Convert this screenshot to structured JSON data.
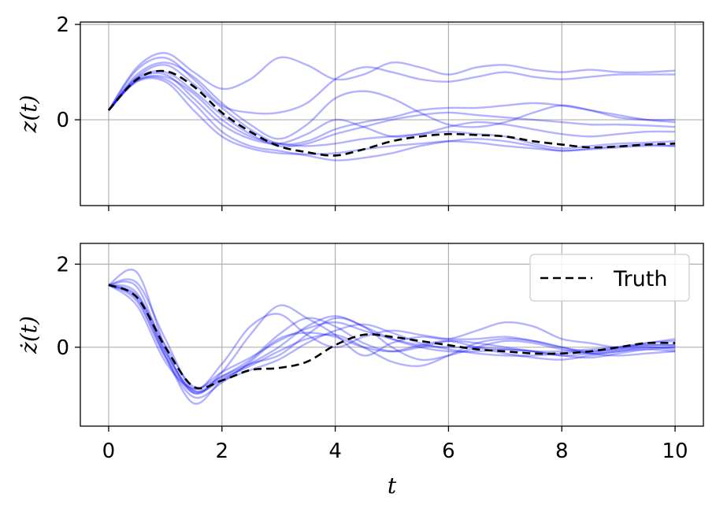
{
  "chart_data": [
    {
      "type": "line",
      "ylabel": "z(t)",
      "xlabel": "",
      "xlim": [
        -0.5,
        10.5
      ],
      "ylim": [
        -1.8,
        2.05
      ],
      "xticks": [
        0,
        2,
        4,
        6,
        8,
        10
      ],
      "yticks": [
        0,
        2
      ],
      "grid": true,
      "x": [
        0,
        0.5,
        1,
        1.5,
        2,
        2.5,
        3,
        3.5,
        4,
        4.5,
        5,
        5.5,
        6,
        6.5,
        7,
        7.5,
        8,
        8.5,
        9,
        9.5,
        10
      ],
      "series": [
        {
          "name": "Truth",
          "style": "dashed",
          "color": "#000000",
          "values": [
            0.2,
            0.85,
            1.02,
            0.7,
            0.15,
            -0.25,
            -0.55,
            -0.68,
            -0.75,
            -0.62,
            -0.45,
            -0.35,
            -0.3,
            -0.32,
            -0.35,
            -0.45,
            -0.52,
            -0.58,
            -0.56,
            -0.52,
            -0.5
          ]
        },
        {
          "style": "sample",
          "values": [
            0.2,
            1.1,
            1.4,
            1.0,
            0.65,
            0.85,
            1.3,
            1.15,
            0.85,
            0.95,
            1.2,
            1.1,
            0.95,
            1.1,
            1.15,
            1.05,
            1.0,
            1.05,
            1.0,
            1.0,
            1.03
          ]
        },
        {
          "style": "sample",
          "values": [
            0.2,
            1.05,
            1.3,
            0.85,
            0.3,
            0.15,
            0.15,
            0.35,
            0.85,
            1.1,
            1.0,
            0.85,
            0.8,
            0.9,
            1.0,
            0.9,
            0.85,
            0.9,
            0.95,
            0.95,
            0.95
          ]
        },
        {
          "style": "sample",
          "values": [
            0.2,
            0.95,
            1.2,
            0.9,
            0.35,
            -0.1,
            -0.4,
            -0.1,
            0.45,
            0.6,
            0.45,
            0.15,
            -0.1,
            -0.15,
            -0.05,
            0.15,
            0.3,
            0.2,
            0.05,
            0.0,
            0.0
          ]
        },
        {
          "style": "sample",
          "values": [
            0.2,
            0.9,
            1.15,
            0.75,
            0.25,
            -0.2,
            -0.5,
            -0.45,
            -0.2,
            -0.05,
            0.05,
            0.2,
            0.25,
            0.25,
            0.3,
            0.35,
            0.3,
            0.2,
            0.1,
            0.0,
            -0.05
          ]
        },
        {
          "style": "sample",
          "values": [
            0.2,
            0.88,
            1.0,
            0.6,
            0.1,
            -0.3,
            -0.55,
            -0.5,
            -0.3,
            -0.15,
            0.0,
            0.1,
            0.15,
            0.1,
            0.05,
            0.0,
            -0.05,
            -0.1,
            -0.1,
            -0.12,
            -0.15
          ]
        },
        {
          "style": "sample",
          "values": [
            0.2,
            0.85,
            0.95,
            0.45,
            -0.1,
            -0.4,
            -0.5,
            -0.3,
            0.0,
            -0.15,
            -0.35,
            -0.3,
            -0.15,
            -0.05,
            -0.1,
            -0.2,
            -0.3,
            -0.35,
            -0.3,
            -0.25,
            -0.25
          ]
        },
        {
          "style": "sample",
          "values": [
            0.2,
            0.82,
            0.9,
            0.55,
            0.0,
            -0.35,
            -0.5,
            -0.55,
            -0.5,
            -0.4,
            -0.35,
            -0.3,
            -0.25,
            -0.3,
            -0.35,
            -0.5,
            -0.6,
            -0.55,
            -0.5,
            -0.48,
            -0.45
          ]
        },
        {
          "style": "sample",
          "values": [
            0.2,
            0.82,
            0.85,
            0.35,
            -0.25,
            -0.55,
            -0.65,
            -0.75,
            -0.85,
            -0.8,
            -0.7,
            -0.55,
            -0.45,
            -0.4,
            -0.45,
            -0.55,
            -0.65,
            -0.6,
            -0.55,
            -0.52,
            -0.55
          ]
        },
        {
          "style": "sample",
          "values": [
            0.2,
            0.8,
            0.8,
            0.2,
            -0.35,
            -0.6,
            -0.7,
            -0.72,
            -0.7,
            -0.62,
            -0.55,
            -0.5,
            -0.45,
            -0.48,
            -0.55,
            -0.6,
            -0.65,
            -0.62,
            -0.58,
            -0.55,
            -0.55
          ]
        }
      ]
    },
    {
      "type": "line",
      "ylabel": "ż(t)",
      "xlabel": "t",
      "xlim": [
        -0.5,
        10.5
      ],
      "ylim": [
        -1.9,
        2.5
      ],
      "xticks": [
        0,
        2,
        4,
        6,
        8,
        10
      ],
      "yticks": [
        0,
        2
      ],
      "grid": true,
      "legend": {
        "position": "top-right",
        "entries": [
          "Truth"
        ]
      },
      "x": [
        0,
        0.5,
        1,
        1.5,
        2,
        2.5,
        3,
        3.5,
        4,
        4.5,
        5,
        5.5,
        6,
        6.5,
        7,
        7.5,
        8,
        8.5,
        9,
        9.5,
        10
      ],
      "series": [
        {
          "name": "Truth",
          "style": "dashed",
          "color": "#000000",
          "values": [
            1.5,
            1.2,
            0.0,
            -0.95,
            -0.8,
            -0.55,
            -0.5,
            -0.35,
            0.05,
            0.3,
            0.25,
            0.15,
            0.05,
            -0.05,
            -0.1,
            -0.15,
            -0.15,
            -0.1,
            0.0,
            0.1,
            0.1
          ]
        },
        {
          "style": "sample",
          "values": [
            1.5,
            1.8,
            0.0,
            -1.1,
            -0.6,
            0.3,
            1.0,
            0.7,
            0.3,
            -0.2,
            0.1,
            0.25,
            0.2,
            0.4,
            0.6,
            0.5,
            0.2,
            0.1,
            0.0,
            0.1,
            0.2
          ]
        },
        {
          "style": "sample",
          "values": [
            1.5,
            1.55,
            0.2,
            -1.0,
            -0.4,
            0.5,
            0.8,
            0.3,
            0.0,
            0.25,
            0.4,
            0.3,
            0.2,
            0.2,
            0.25,
            0.15,
            0.0,
            -0.1,
            0.0,
            0.1,
            0.15
          ]
        },
        {
          "style": "sample",
          "values": [
            1.5,
            1.45,
            -0.1,
            -1.05,
            -0.7,
            -0.3,
            0.3,
            0.7,
            0.5,
            0.1,
            -0.1,
            0.0,
            0.15,
            0.1,
            0.0,
            -0.1,
            -0.2,
            -0.15,
            -0.05,
            0.05,
            0.05
          ]
        },
        {
          "style": "sample",
          "values": [
            1.5,
            1.3,
            -0.2,
            -1.35,
            -0.8,
            -0.4,
            0.0,
            0.5,
            0.75,
            0.5,
            0.2,
            0.0,
            -0.1,
            -0.1,
            -0.05,
            -0.1,
            -0.2,
            -0.25,
            -0.15,
            -0.05,
            0.0
          ]
        },
        {
          "style": "sample",
          "values": [
            1.5,
            1.25,
            0.05,
            -0.95,
            -0.7,
            -0.4,
            -0.2,
            0.3,
            0.7,
            0.5,
            0.0,
            -0.3,
            -0.2,
            0.0,
            0.15,
            0.1,
            -0.05,
            -0.15,
            -0.1,
            0.0,
            -0.05
          ]
        },
        {
          "style": "sample",
          "values": [
            1.5,
            1.2,
            -0.1,
            -1.05,
            -0.8,
            -0.55,
            -0.3,
            0.1,
            0.4,
            0.55,
            0.35,
            0.1,
            -0.05,
            -0.15,
            -0.2,
            -0.2,
            -0.15,
            -0.1,
            -0.05,
            0.0,
            0.0
          ]
        },
        {
          "style": "sample",
          "values": [
            1.5,
            1.15,
            -0.2,
            -1.1,
            -0.75,
            -0.45,
            -0.1,
            0.2,
            0.3,
            0.0,
            -0.35,
            -0.45,
            -0.2,
            0.1,
            0.2,
            0.15,
            0.0,
            -0.15,
            -0.2,
            -0.15,
            -0.1
          ]
        },
        {
          "style": "sample",
          "values": [
            1.5,
            1.1,
            -0.25,
            -1.2,
            -0.85,
            -0.35,
            0.2,
            0.35,
            0.25,
            0.0,
            -0.1,
            0.05,
            0.15,
            0.0,
            -0.15,
            -0.25,
            -0.3,
            -0.2,
            -0.1,
            -0.05,
            -0.1
          ]
        },
        {
          "style": "sample",
          "values": [
            1.5,
            1.0,
            -0.35,
            -1.0,
            -0.6,
            -0.25,
            0.15,
            0.45,
            0.6,
            0.4,
            0.2,
            0.05,
            0.0,
            0.0,
            -0.05,
            -0.1,
            -0.1,
            -0.05,
            0.0,
            0.05,
            0.05
          ]
        }
      ]
    }
  ]
}
